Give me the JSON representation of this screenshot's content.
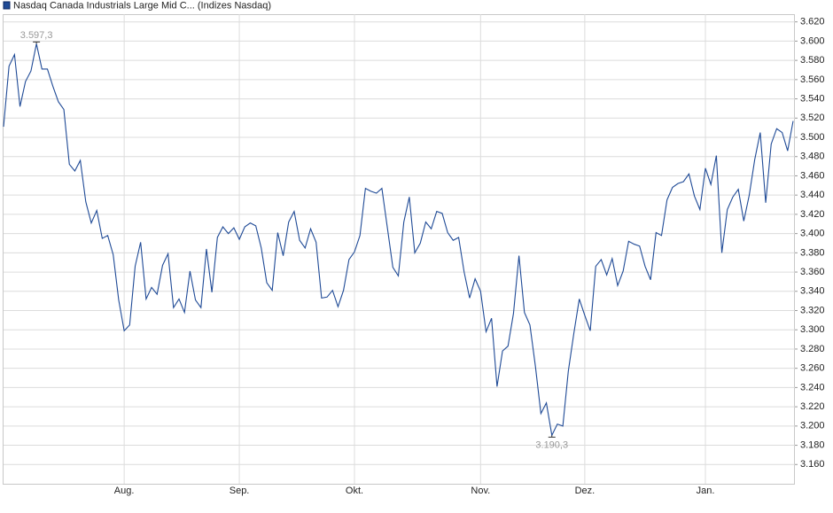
{
  "chart_data": {
    "type": "line",
    "categories": [
      null,
      null,
      null,
      null,
      null,
      null,
      null,
      null,
      null,
      null,
      null,
      null,
      null,
      null,
      null,
      null,
      null,
      null,
      null,
      null,
      null,
      null,
      "Aug.",
      null,
      null,
      null,
      null,
      null,
      null,
      null,
      null,
      null,
      null,
      null,
      null,
      null,
      null,
      null,
      null,
      null,
      null,
      null,
      null,
      "Sep.",
      null,
      null,
      null,
      null,
      null,
      null,
      null,
      null,
      null,
      null,
      null,
      null,
      null,
      null,
      null,
      null,
      null,
      null,
      null,
      null,
      "Okt.",
      null,
      null,
      null,
      null,
      null,
      null,
      null,
      null,
      null,
      null,
      null,
      null,
      null,
      null,
      null,
      null,
      null,
      null,
      null,
      null,
      null,
      null,
      "Nov.",
      null,
      null,
      null,
      null,
      null,
      null,
      null,
      null,
      null,
      null,
      null,
      null,
      null,
      null,
      null,
      null,
      null,
      null,
      "Dez.",
      null,
      null,
      null,
      null,
      null,
      null,
      null,
      null,
      null,
      null,
      null,
      null,
      null,
      null,
      null,
      null,
      null,
      null,
      null,
      null,
      null,
      "Jan.",
      null,
      null,
      null,
      null,
      null,
      null,
      null,
      null,
      null,
      null,
      null,
      null,
      null,
      null,
      null,
      null
    ],
    "series": [
      {
        "name": "Nasdaq Canada Industrials Large Mid C... (Indizes Nasdaq)",
        "color": "#1f4a96",
        "values": [
          3511,
          3574,
          3586,
          3532,
          3558,
          3569,
          3597.3,
          3571,
          3571,
          3553,
          3537,
          3529,
          3472,
          3465,
          3476,
          3433,
          3411,
          3424,
          3395,
          3398,
          3378,
          3331,
          3299,
          3305,
          3366,
          3391,
          3332,
          3344,
          3337,
          3367,
          3379,
          3323,
          3332,
          3318,
          3361,
          3331,
          3323,
          3384,
          3339,
          3396,
          3407,
          3400,
          3406,
          3394,
          3407,
          3411,
          3408,
          3385,
          3349,
          3341,
          3401,
          3377,
          3412,
          3423,
          3393,
          3385,
          3405,
          3391,
          3333,
          3334,
          3341,
          3324,
          3341,
          3373,
          3381,
          3398,
          3447,
          3444,
          3442,
          3447,
          3406,
          3365,
          3356,
          3412,
          3438,
          3380,
          3390,
          3412,
          3405,
          3423,
          3421,
          3401,
          3393,
          3396,
          3360,
          3333,
          3353,
          3340,
          3298,
          3312,
          3241,
          3278,
          3283,
          3317,
          3377,
          3318,
          3305,
          3262,
          3213,
          3224,
          3190.3,
          3202,
          3200,
          3257,
          3296,
          3332,
          3315,
          3299,
          3366,
          3373,
          3357,
          3374,
          3346,
          3361,
          3392,
          3389,
          3387,
          3366,
          3352,
          3401,
          3398,
          3435,
          3448,
          3452,
          3454,
          3462,
          3439,
          3425,
          3468,
          3451,
          3481,
          3380,
          3425,
          3438,
          3446,
          3413,
          3440,
          3477,
          3505,
          3432,
          3493,
          3509,
          3505,
          3486,
          3517
        ],
        "value_labels": [
          null,
          null,
          null,
          null,
          null,
          null,
          "3.597,3",
          null,
          null,
          null,
          null,
          null,
          null,
          null,
          null,
          null,
          null,
          null,
          null,
          null,
          null,
          null,
          null,
          null,
          null,
          null,
          null,
          null,
          null,
          null,
          null,
          null,
          null,
          null,
          null,
          null,
          null,
          null,
          null,
          null,
          null,
          null,
          null,
          null,
          null,
          null,
          null,
          null,
          null,
          null,
          null,
          null,
          null,
          null,
          null,
          null,
          null,
          null,
          null,
          null,
          null,
          null,
          null,
          null,
          null,
          null,
          null,
          null,
          null,
          null,
          null,
          null,
          null,
          null,
          null,
          null,
          null,
          null,
          null,
          null,
          null,
          null,
          null,
          null,
          null,
          null,
          null,
          null,
          null,
          null,
          null,
          null,
          null,
          null,
          null,
          null,
          null,
          null,
          null,
          null,
          "3.190,3",
          null,
          null,
          null,
          null,
          null,
          null,
          null,
          null,
          null,
          null,
          null,
          null,
          null,
          null,
          null,
          null,
          null,
          null,
          null,
          null,
          null,
          null,
          null,
          null,
          null,
          null,
          null,
          null,
          null,
          null,
          null,
          null,
          null,
          null,
          null,
          null,
          null,
          null,
          null,
          null,
          null,
          null,
          null,
          null
        ]
      }
    ],
    "ylim": [
      3140,
      3628
    ],
    "yticks": [
      {
        "value": 3160,
        "label": "3.160"
      },
      {
        "value": 3180,
        "label": "3.180"
      },
      {
        "value": 3200,
        "label": "3.200"
      },
      {
        "value": 3220,
        "label": "3.220"
      },
      {
        "value": 3240,
        "label": "3.240"
      },
      {
        "value": 3260,
        "label": "3.260"
      },
      {
        "value": 3280,
        "label": "3.280"
      },
      {
        "value": 3300,
        "label": "3.300"
      },
      {
        "value": 3320,
        "label": "3.320"
      },
      {
        "value": 3340,
        "label": "3.340"
      },
      {
        "value": 3360,
        "label": "3.360"
      },
      {
        "value": 3380,
        "label": "3.380"
      },
      {
        "value": 3400,
        "label": "3.400"
      },
      {
        "value": 3420,
        "label": "3.420"
      },
      {
        "value": 3440,
        "label": "3.440"
      },
      {
        "value": 3460,
        "label": "3.460"
      },
      {
        "value": 3480,
        "label": "3.480"
      },
      {
        "value": 3500,
        "label": "3.500"
      },
      {
        "value": 3520,
        "label": "3.520"
      },
      {
        "value": 3540,
        "label": "3.540"
      },
      {
        "value": 3560,
        "label": "3.560"
      },
      {
        "value": 3580,
        "label": "3.580"
      },
      {
        "value": 3600,
        "label": "3.600"
      },
      {
        "value": 3620,
        "label": "3.620"
      }
    ],
    "grid": true
  }
}
